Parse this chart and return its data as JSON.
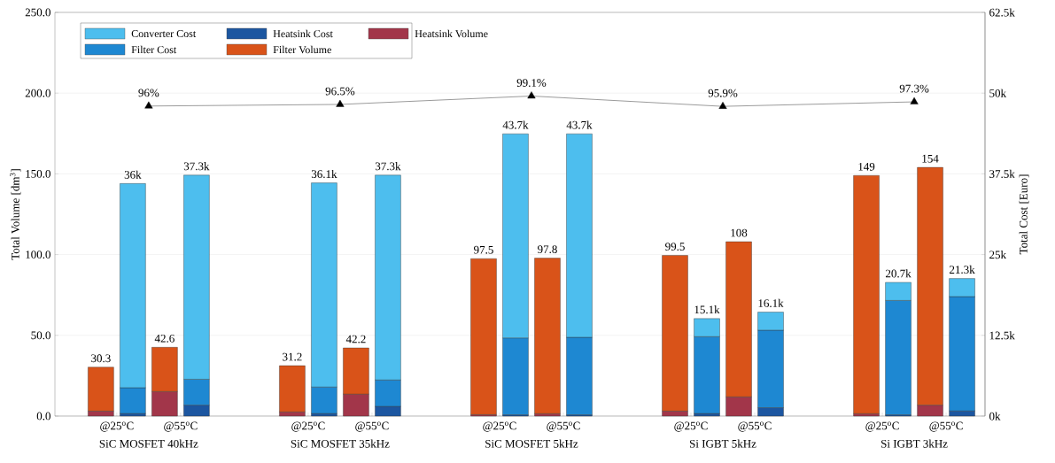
{
  "chart_data": [
    {
      "type": "bar",
      "stacked": true,
      "categories": [
        "@25$^{o}$C",
        "@55$^{o}$C",
        null,
        "@25$^{o}$C",
        "@55$^{o}$C",
        null,
        "@25$^{o}$C",
        "@55$^{o}$C",
        null,
        "@25$^{o}$C",
        "@55$^{o}$C",
        null,
        "@25$^{o}$C",
        "@55$^{o}$C"
      ],
      "ylabel": "Total Volume [dm$^{3}$]",
      "ylim": [
        0,
        250
      ],
      "yticks": [
        {
          "value": 0,
          "label": "0.0"
        },
        {
          "value": 50,
          "label": "50.0"
        },
        {
          "value": 100,
          "label": "100.0"
        },
        {
          "value": 150,
          "label": "150.0"
        },
        {
          "value": 200,
          "label": "200.0"
        },
        {
          "value": 250,
          "label": "250.0"
        }
      ],
      "grid": "y",
      "legend": "top left",
      "series": [
        {
          "name": "Heatsink Volume",
          "color": "#a2364a",
          "values": [
            3.1,
            15.2,
            null,
            2.6,
            13.6,
            null,
            0.9,
            1.5,
            null,
            3.1,
            11.9,
            null,
            1.5,
            6.8
          ]
        },
        {
          "name": "Filter Volume",
          "color": "#d95319",
          "values": [
            27.2,
            27.4,
            null,
            28.6,
            28.6,
            null,
            96.6,
            96.3,
            null,
            96.4,
            96.1,
            null,
            147.5,
            147.2
          ]
        }
      ],
      "totals": [
        "30.3",
        "42.6",
        null,
        "31.2",
        "42.2",
        null,
        "97.5",
        "97.8",
        null,
        "99.5",
        "108",
        null,
        "149",
        "154"
      ]
    },
    {
      "type": "bar",
      "stacked": true,
      "categories": [
        null,
        null,
        null,
        null,
        null,
        null,
        null,
        null,
        null,
        null,
        null,
        null,
        null,
        null
      ],
      "ylabel": "Total Cost [Euro]",
      "tick_labels": "y",
      "legend": "top left",
      "ylim": [
        0,
        62500
      ],
      "yticks": [
        {
          "value": 0,
          "label": "0k"
        },
        {
          "value": 12500,
          "label": "12.5k"
        },
        {
          "value": 25000,
          "label": "25k"
        },
        {
          "value": 37500,
          "label": "37.5k"
        },
        {
          "value": 50000,
          "label": "50k"
        },
        {
          "value": 62500,
          "label": "62.5k"
        }
      ],
      "series": [
        {
          "name": "Heatsink Cost",
          "color": "#1c56a0",
          "values": [
            400,
            1700,
            null,
            400,
            1500,
            null,
            200,
            200,
            null,
            400,
            1300,
            null,
            200,
            800
          ]
        },
        {
          "name": "Filter Cost",
          "color": "#1e88d2",
          "values": [
            4000,
            4000,
            null,
            4100,
            4100,
            null,
            11900,
            12000,
            null,
            11900,
            12000,
            null,
            17700,
            17700
          ]
        },
        {
          "name": "Converter Cost",
          "color": "#4dbeee",
          "values": [
            31600,
            31600,
            null,
            31600,
            31700,
            null,
            31600,
            31500,
            null,
            2800,
            2800,
            null,
            2800,
            2800
          ]
        }
      ],
      "totals": [
        "36k",
        "37.3k",
        null,
        "36.1k",
        "37.3k",
        null,
        "43.7k",
        "43.7k",
        null,
        "15.1k",
        "16.1k",
        null,
        "20.7k",
        "21.3k"
      ]
    },
    {
      "type": "line",
      "tick_labels": "x",
      "ylim": [
        0,
        125
      ],
      "categories": [
        "SiC MOSFET 40kHz",
        "SiC MOSFET 35kHz",
        "SiC MOSFET 5kHz",
        "Si IGBT 5kHz",
        "Si IGBT 3kHz"
      ],
      "series": [
        {
          "color": "#000000",
          "marker": "triangle",
          "values": [
            96,
            96.5,
            99.1,
            95.9,
            97.3
          ],
          "value_labels": [
            "96%",
            "96.5%",
            "99.1%",
            "95.9%",
            "97.3%"
          ]
        }
      ]
    }
  ]
}
